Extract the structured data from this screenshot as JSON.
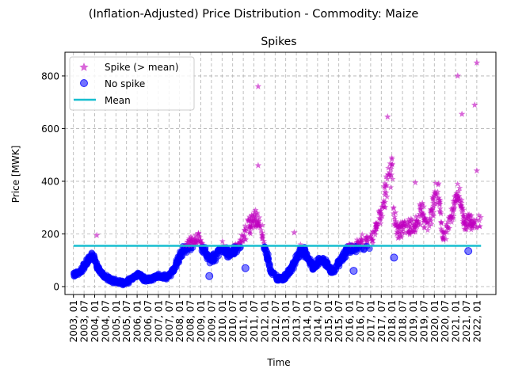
{
  "chart_data": {
    "type": "scatter",
    "suptitle": "(Inflation-Adjusted) Price Distribution - Commodity: Maize",
    "title": "Spikes",
    "xlabel": "Time",
    "ylabel": "Price [MWK]",
    "ylim": [
      -30,
      890
    ],
    "yticks": [
      0,
      200,
      400,
      600,
      800
    ],
    "xlim": [
      2002.6,
      2022.9
    ],
    "xtick_labels": [
      "2003, 01",
      "2003, 07",
      "2004, 01",
      "2004, 07",
      "2005, 01",
      "2005, 07",
      "2006, 01",
      "2006, 07",
      "2007, 01",
      "2007, 07",
      "2008, 01",
      "2008, 07",
      "2009, 01",
      "2009, 07",
      "2010, 01",
      "2010, 07",
      "2011, 01",
      "2011, 07",
      "2012, 01",
      "2012, 07",
      "2013, 01",
      "2013, 07",
      "2014, 01",
      "2014, 07",
      "2015, 01",
      "2015, 07",
      "2016, 01",
      "2016, 07",
      "2017, 01",
      "2017, 07",
      "2018, 01",
      "2018, 07",
      "2019, 01",
      "2019, 07",
      "2020, 01",
      "2020, 07",
      "2021, 01",
      "2021, 07",
      "2022, 01"
    ],
    "grid": true,
    "legend_position": "top-left",
    "mean": 155,
    "colors": {
      "spike": "#bf00bf",
      "no_spike": "#0000ff",
      "mean": "#17becf"
    },
    "series": [
      {
        "name": "Spike (> mean)",
        "marker": "star"
      },
      {
        "name": "No spike",
        "marker": "circle"
      },
      {
        "name": "Mean",
        "marker": "line"
      }
    ],
    "price_trend": [
      [
        2003.0,
        45
      ],
      [
        2003.3,
        55
      ],
      [
        2003.6,
        90
      ],
      [
        2003.9,
        120
      ],
      [
        2004.1,
        80
      ],
      [
        2004.4,
        40
      ],
      [
        2004.8,
        25
      ],
      [
        2005.2,
        15
      ],
      [
        2005.5,
        15
      ],
      [
        2005.8,
        35
      ],
      [
        2006.1,
        45
      ],
      [
        2006.4,
        25
      ],
      [
        2006.7,
        30
      ],
      [
        2007.0,
        40
      ],
      [
        2007.4,
        35
      ],
      [
        2007.7,
        60
      ],
      [
        2008.0,
        110
      ],
      [
        2008.3,
        150
      ],
      [
        2008.6,
        170
      ],
      [
        2008.9,
        185
      ],
      [
        2009.1,
        150
      ],
      [
        2009.4,
        100
      ],
      [
        2009.7,
        110
      ],
      [
        2010.0,
        150
      ],
      [
        2010.3,
        120
      ],
      [
        2010.6,
        140
      ],
      [
        2010.9,
        170
      ],
      [
        2011.2,
        220
      ],
      [
        2011.5,
        260
      ],
      [
        2011.8,
        230
      ],
      [
        2012.0,
        160
      ],
      [
        2012.3,
        60
      ],
      [
        2012.6,
        30
      ],
      [
        2012.9,
        30
      ],
      [
        2013.1,
        50
      ],
      [
        2013.4,
        90
      ],
      [
        2013.7,
        140
      ],
      [
        2014.0,
        120
      ],
      [
        2014.3,
        70
      ],
      [
        2014.6,
        100
      ],
      [
        2014.9,
        90
      ],
      [
        2015.2,
        50
      ],
      [
        2015.5,
        90
      ],
      [
        2015.8,
        130
      ],
      [
        2016.0,
        150
      ],
      [
        2016.3,
        150
      ],
      [
        2016.6,
        170
      ],
      [
        2016.9,
        165
      ],
      [
        2017.2,
        210
      ],
      [
        2017.5,
        280
      ],
      [
        2017.8,
        400
      ],
      [
        2018.0,
        480
      ],
      [
        2018.1,
        260
      ],
      [
        2018.3,
        210
      ],
      [
        2018.6,
        230
      ],
      [
        2018.9,
        220
      ],
      [
        2019.1,
        240
      ],
      [
        2019.4,
        300
      ],
      [
        2019.7,
        220
      ],
      [
        2020.0,
        330
      ],
      [
        2020.2,
        360
      ],
      [
        2020.4,
        190
      ],
      [
        2020.7,
        240
      ],
      [
        2021.0,
        330
      ],
      [
        2021.2,
        350
      ],
      [
        2021.4,
        240
      ],
      [
        2021.7,
        240
      ],
      [
        2022.0,
        240
      ],
      [
        2022.2,
        250
      ]
    ],
    "outlier_spikes": [
      [
        2004.1,
        195
      ],
      [
        2011.7,
        760
      ],
      [
        2011.7,
        460
      ],
      [
        2021.1,
        800
      ],
      [
        2021.3,
        655
      ],
      [
        2021.9,
        690
      ],
      [
        2022.0,
        850
      ],
      [
        2022.0,
        440
      ],
      [
        2017.8,
        645
      ],
      [
        2013.4,
        205
      ],
      [
        2019.1,
        395
      ]
    ],
    "outlier_nospike": [
      [
        2021.6,
        135
      ],
      [
        2016.2,
        60
      ],
      [
        2009.4,
        40
      ],
      [
        2011.1,
        70
      ],
      [
        2018.1,
        110
      ]
    ]
  }
}
